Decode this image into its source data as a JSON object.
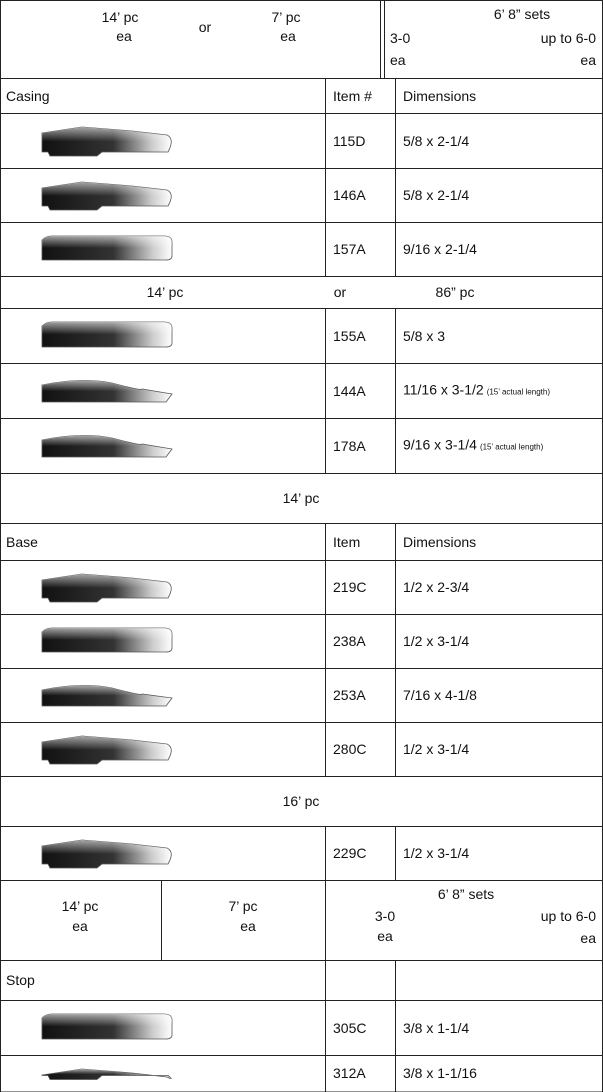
{
  "header_1": {
    "piece_14": "14’ pc",
    "each_14": "ea",
    "or": "or",
    "piece_7": "7’ pc",
    "each_7": "ea",
    "sets": "6’ 8” sets",
    "size_3_0": "3-0",
    "each_3_0": "ea",
    "size_6_0": "up to 6-0",
    "each_6_0": "ea"
  },
  "casing": {
    "label": "Casing",
    "item_header": "Item #",
    "dim_header": "Dimensions",
    "rows": [
      {
        "item": "115D",
        "dimensions": "5/8 x 2-1/4"
      },
      {
        "item": "146A",
        "dimensions": "5/8 x 2-1/4"
      },
      {
        "item": "157A",
        "dimensions": "9/16 x 2-1/4"
      }
    ]
  },
  "length_row_1": {
    "left": "14’ pc",
    "or": "or",
    "right": "86” pc"
  },
  "casing_long": {
    "rows": [
      {
        "item": "155A",
        "dimensions": "5/8 x 3"
      },
      {
        "item": "144A",
        "dimensions": "11/16 x 3-1/2",
        "note": "(15’ actual length)"
      },
      {
        "item": "178A",
        "dimensions": "9/16 x 3-1/4",
        "note": "(15’ actual length)"
      }
    ]
  },
  "length_row_2": "14’ pc",
  "base": {
    "label": "Base",
    "item_header": "Item",
    "dim_header": "Dimensions",
    "rows": [
      {
        "item": "219C",
        "dimensions": "1/2 x 2-3/4"
      },
      {
        "item": "238A",
        "dimensions": "1/2 x 3-1/4"
      },
      {
        "item": "253A",
        "dimensions": "7/16 x 4-1/8"
      },
      {
        "item": "280C",
        "dimensions": "1/2 x 3-1/4"
      }
    ]
  },
  "length_row_3": "16’ pc",
  "base_long": {
    "rows": [
      {
        "item": "229C",
        "dimensions": "1/2 x 3-1/4"
      }
    ]
  },
  "header_2": {
    "piece_14": "14’ pc",
    "each_14": "ea",
    "piece_7": "7’ pc",
    "each_7": "ea",
    "sets": "6’ 8” sets",
    "size_3_0": "3-0",
    "each_3_0": "ea",
    "size_6_0": "up to 6-0",
    "each_6_0": "ea"
  },
  "stop": {
    "label": "Stop",
    "rows": [
      {
        "item": "305C",
        "dimensions": "3/8 x 1-1/4"
      },
      {
        "item": "312A",
        "dimensions": "3/8 x 1-1/16"
      }
    ]
  }
}
